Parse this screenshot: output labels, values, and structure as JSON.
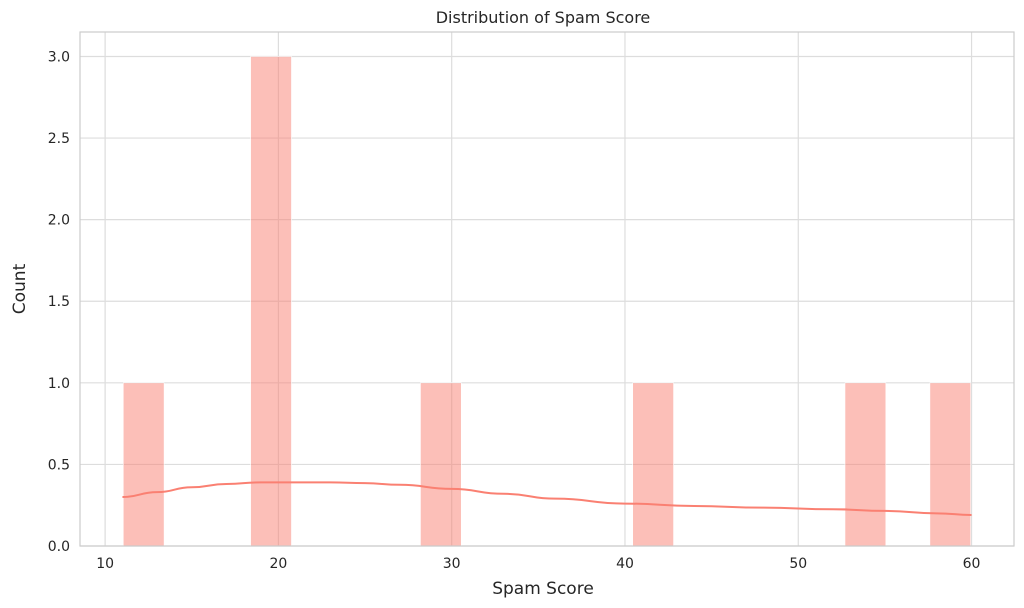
{
  "chart_data": {
    "type": "bar",
    "title": "Distribution of Spam Score",
    "xlabel": "Spam Score",
    "ylabel": "Count",
    "xlim": [
      8.55,
      62.45
    ],
    "ylim": [
      0,
      3.15
    ],
    "xticks": [
      10,
      20,
      30,
      40,
      50,
      60
    ],
    "yticks": [
      0.0,
      0.5,
      1.0,
      1.5,
      2.0,
      2.5,
      3.0
    ],
    "xtick_labels": [
      "10",
      "20",
      "30",
      "40",
      "50",
      "60"
    ],
    "ytick_labels": [
      "0.0",
      "0.5",
      "1.0",
      "1.5",
      "2.0",
      "2.5",
      "3.0"
    ],
    "grid": true,
    "bins": [
      {
        "x0": 11.0,
        "x1": 13.45,
        "count": 1
      },
      {
        "x0": 13.45,
        "x1": 15.9,
        "count": 0
      },
      {
        "x0": 15.9,
        "x1": 18.35,
        "count": 0
      },
      {
        "x0": 18.35,
        "x1": 20.8,
        "count": 3
      },
      {
        "x0": 20.8,
        "x1": 23.25,
        "count": 0
      },
      {
        "x0": 23.25,
        "x1": 25.7,
        "count": 0
      },
      {
        "x0": 25.7,
        "x1": 28.15,
        "count": 0
      },
      {
        "x0": 28.15,
        "x1": 30.6,
        "count": 1
      },
      {
        "x0": 30.6,
        "x1": 33.05,
        "count": 0
      },
      {
        "x0": 33.05,
        "x1": 35.5,
        "count": 0
      },
      {
        "x0": 35.5,
        "x1": 37.95,
        "count": 0
      },
      {
        "x0": 37.95,
        "x1": 40.4,
        "count": 0
      },
      {
        "x0": 40.4,
        "x1": 42.85,
        "count": 1
      },
      {
        "x0": 42.85,
        "x1": 45.3,
        "count": 0
      },
      {
        "x0": 45.3,
        "x1": 47.75,
        "count": 0
      },
      {
        "x0": 47.75,
        "x1": 50.2,
        "count": 0
      },
      {
        "x0": 50.2,
        "x1": 52.65,
        "count": 0
      },
      {
        "x0": 52.65,
        "x1": 55.1,
        "count": 1
      },
      {
        "x0": 55.1,
        "x1": 57.55,
        "count": 0
      },
      {
        "x0": 57.55,
        "x1": 60.0,
        "count": 1
      }
    ],
    "kde": {
      "x": [
        11,
        13,
        15,
        17,
        19,
        21,
        23,
        25,
        27,
        30,
        33,
        36,
        40,
        44,
        48,
        52,
        55,
        58,
        60
      ],
      "y": [
        0.3,
        0.33,
        0.36,
        0.38,
        0.39,
        0.39,
        0.39,
        0.385,
        0.375,
        0.35,
        0.32,
        0.29,
        0.26,
        0.245,
        0.235,
        0.225,
        0.215,
        0.2,
        0.19
      ]
    },
    "colors": {
      "bar": "#fa8072",
      "kde": "#fa8072",
      "grid": "#dddddd",
      "spine": "#cccccc",
      "text": "#262626"
    }
  }
}
